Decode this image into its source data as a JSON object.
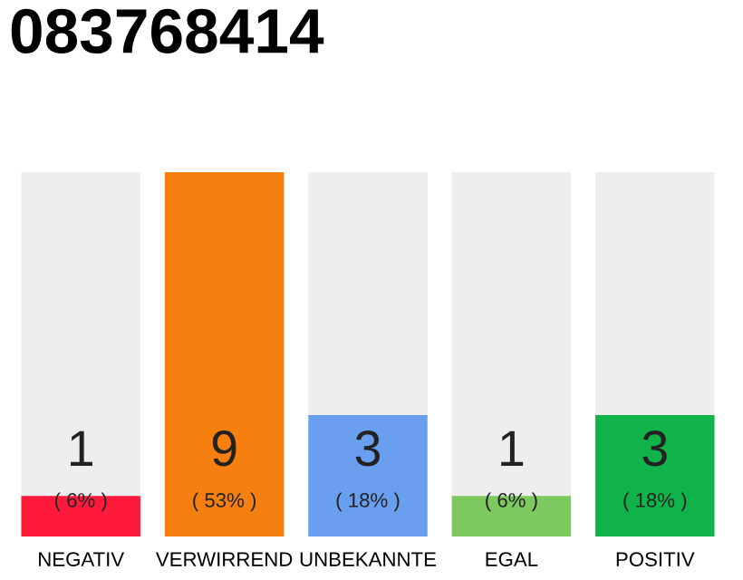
{
  "chart_data": {
    "type": "bar",
    "title": "083768414",
    "categories": [
      "NEGATIV",
      "VERWIRREND",
      "UNBEKANNTE",
      "EGAL",
      "POSITIV"
    ],
    "values": [
      1,
      9,
      3,
      1,
      3
    ],
    "colors": [
      "#ff1a3c",
      "#f57f0f",
      "#6a9eef",
      "#7dc95e",
      "#0fb34a"
    ],
    "data_labels": true,
    "annotations": [
      "( 6% )",
      "( 53% )",
      "( 18% )",
      "( 6% )",
      "( 18% )"
    ],
    "grid": false,
    "legend": false
  }
}
